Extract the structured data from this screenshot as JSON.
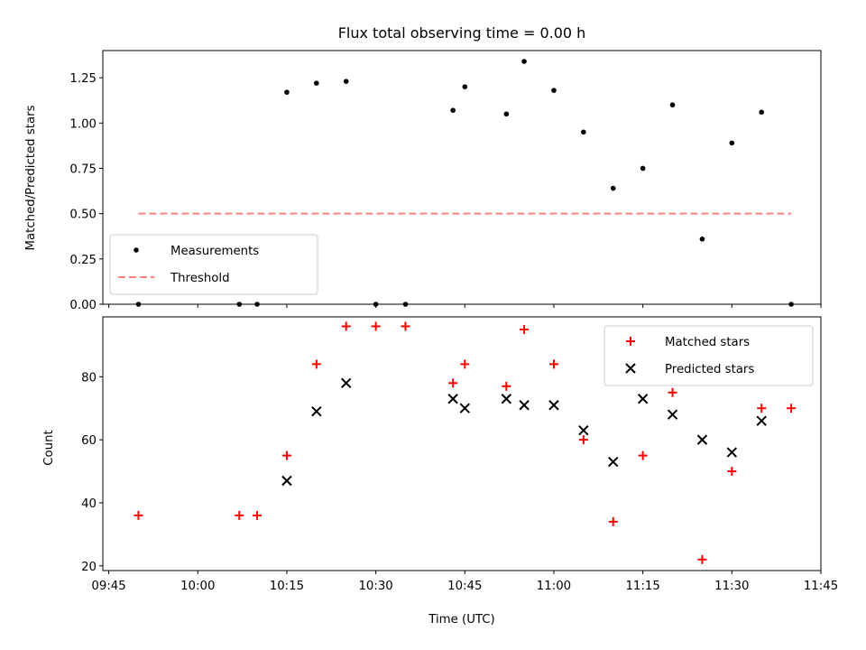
{
  "chart_data": [
    {
      "type": "scatter",
      "title": "Flux total observing time = 0.00 h",
      "xlabel": "",
      "ylabel": "Matched/Predicted stars",
      "ylim": [
        0,
        1.4
      ],
      "yticks": [
        "0.00",
        "0.25",
        "0.50",
        "0.75",
        "1.00",
        "1.25"
      ],
      "xlim": [
        "09:44",
        "11:45"
      ],
      "legend_placement": "lower-left",
      "series": [
        {
          "name": "Measurements",
          "marker": "dot",
          "color": "#000000",
          "x": [
            "09:50",
            "10:07",
            "10:10",
            "10:15",
            "10:20",
            "10:25",
            "10:30",
            "10:35",
            "10:43",
            "10:45",
            "10:52",
            "10:55",
            "11:00",
            "11:05",
            "11:10",
            "11:15",
            "11:20",
            "11:25",
            "11:30",
            "11:35",
            "11:40"
          ],
          "y": [
            0.0,
            0.0,
            0.0,
            1.17,
            1.22,
            1.23,
            0.0,
            0.0,
            1.07,
            1.2,
            1.05,
            1.34,
            1.18,
            0.95,
            0.64,
            0.75,
            1.1,
            0.36,
            0.89,
            1.06,
            0.0
          ]
        },
        {
          "name": "Threshold",
          "style": "dashed-line",
          "color": "#ff7f7f",
          "x": [
            "09:50",
            "11:40"
          ],
          "y": [
            0.5,
            0.5
          ]
        }
      ]
    },
    {
      "type": "scatter",
      "title": "",
      "xlabel": "Time (UTC)",
      "ylabel": "Count",
      "ylim": [
        18.5,
        99
      ],
      "yticks": [
        "20",
        "40",
        "60",
        "80"
      ],
      "xlim": [
        "09:44",
        "11:45"
      ],
      "xticks": [
        "09:45",
        "10:00",
        "10:15",
        "10:30",
        "10:45",
        "11:00",
        "11:15",
        "11:30",
        "11:45"
      ],
      "legend_placement": "upper-right",
      "series": [
        {
          "name": "Matched stars",
          "marker": "plus",
          "color": "#ff0000",
          "x": [
            "09:50",
            "10:07",
            "10:10",
            "10:15",
            "10:20",
            "10:25",
            "10:30",
            "10:35",
            "10:43",
            "10:45",
            "10:52",
            "10:55",
            "11:00",
            "11:05",
            "11:10",
            "11:15",
            "11:20",
            "11:25",
            "11:30",
            "11:35",
            "11:40"
          ],
          "y": [
            36,
            36,
            36,
            55,
            84,
            96,
            96,
            96,
            78,
            84,
            77,
            95,
            84,
            60,
            34,
            55,
            75,
            22,
            50,
            70,
            70
          ]
        },
        {
          "name": "Predicted stars",
          "marker": "x",
          "color": "#000000",
          "x": [
            "10:15",
            "10:20",
            "10:25",
            "10:43",
            "10:45",
            "10:52",
            "10:55",
            "11:00",
            "11:05",
            "11:10",
            "11:15",
            "11:20",
            "11:25",
            "11:30",
            "11:35"
          ],
          "y": [
            47,
            69,
            78,
            73,
            70,
            73,
            71,
            71,
            63,
            53,
            73,
            68,
            60,
            56,
            66
          ]
        }
      ]
    }
  ]
}
